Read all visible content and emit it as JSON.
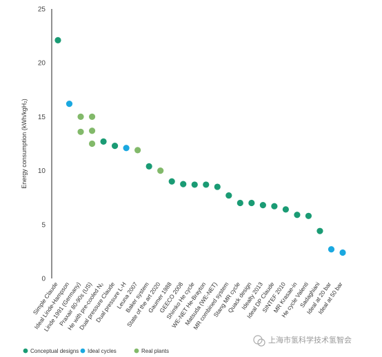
{
  "chart_data": {
    "type": "scatter",
    "xlabel": "",
    "ylabel": "Energy consumption (kWh/kgH₂)",
    "ylim": [
      0,
      25
    ],
    "yticks": [
      0,
      5,
      10,
      15,
      20,
      25
    ],
    "grid": false,
    "legend_position": "bottom-left",
    "colors": {
      "Conceptual designs": "#1a9b74",
      "Ideal cycles": "#1aa8e0",
      "Real plants": "#82b96a"
    },
    "legend": [
      "Conceptual designs",
      "Ideal cycles",
      "Real plants"
    ],
    "categories": [
      "Simple Claude",
      "Ideal Linde-Hampson",
      "Linde 1991 (Germany)",
      "Praxair 80-90s (US)",
      "He with pre-cooled N₂",
      "Dual pressure Claude",
      "Dual pressure L-H",
      "Leuna 2007",
      "Baker system",
      "State of the art 2020",
      "Gaumer 1988",
      "GEECO 2008",
      "Shimko He cycle",
      "WE-NET He-Brayton",
      "Matsuda (WE-NET)",
      "MR combined system",
      "Stang MR cycle",
      "Quack design",
      "Idealty 2013",
      "Ideal DP Claude",
      "SINTEF 2010",
      "MR Krasae-in",
      "He cycle Valenti",
      "Sadaghiani",
      "Ideal at 20 bar",
      "Ideal at 50 bar"
    ],
    "points": [
      {
        "category": "Simple Claude",
        "series": "Conceptual designs",
        "y": 22.1
      },
      {
        "category": "Ideal Linde-Hampson",
        "series": "Ideal cycles",
        "y": 16.2
      },
      {
        "category": "Linde 1991 (Germany)",
        "series": "Real plants",
        "y": 15.0
      },
      {
        "category": "Linde 1991 (Germany)",
        "series": "Real plants",
        "y": 13.6
      },
      {
        "category": "Praxair 80-90s (US)",
        "series": "Real plants",
        "y": 15.0
      },
      {
        "category": "Praxair 80-90s (US)",
        "series": "Real plants",
        "y": 13.7
      },
      {
        "category": "Praxair 80-90s (US)",
        "series": "Real plants",
        "y": 12.5
      },
      {
        "category": "He with pre-cooled N₂",
        "series": "Conceptual designs",
        "y": 12.7
      },
      {
        "category": "Dual pressure Claude",
        "series": "Conceptual designs",
        "y": 12.3
      },
      {
        "category": "Dual pressure L-H",
        "series": "Ideal cycles",
        "y": 12.1
      },
      {
        "category": "Leuna 2007",
        "series": "Real plants",
        "y": 11.9
      },
      {
        "category": "Baker system",
        "series": "Conceptual designs",
        "y": 10.4
      },
      {
        "category": "State of the art 2020",
        "series": "Real plants",
        "y": 10.0
      },
      {
        "category": "Gaumer 1988",
        "series": "Conceptual designs",
        "y": 9.0
      },
      {
        "category": "GEECO 2008",
        "series": "Conceptual designs",
        "y": 8.75
      },
      {
        "category": "Shimko He cycle",
        "series": "Conceptual designs",
        "y": 8.7
      },
      {
        "category": "WE-NET He-Brayton",
        "series": "Conceptual designs",
        "y": 8.7
      },
      {
        "category": "Matsuda (WE-NET)",
        "series": "Conceptual designs",
        "y": 8.5
      },
      {
        "category": "MR combined system",
        "series": "Conceptual designs",
        "y": 7.7
      },
      {
        "category": "Stang MR cycle",
        "series": "Conceptual designs",
        "y": 7.0
      },
      {
        "category": "Quack design",
        "series": "Conceptual designs",
        "y": 7.0
      },
      {
        "category": "Idealty 2013",
        "series": "Conceptual designs",
        "y": 6.8
      },
      {
        "category": "Ideal DP Claude",
        "series": "Conceptual designs",
        "y": 6.7
      },
      {
        "category": "SINTEF 2010",
        "series": "Conceptual designs",
        "y": 6.4
      },
      {
        "category": "MR Krasae-in",
        "series": "Conceptual designs",
        "y": 5.9
      },
      {
        "category": "He cycle Valenti",
        "series": "Conceptual designs",
        "y": 5.8
      },
      {
        "category": "Sadaghiani",
        "series": "Conceptual designs",
        "y": 4.4
      },
      {
        "category": "Ideal at 20 bar",
        "series": "Ideal cycles",
        "y": 2.7
      },
      {
        "category": "Ideal at 50 bar",
        "series": "Ideal cycles",
        "y": 2.4
      }
    ]
  },
  "watermark_text": "上海市氢科学技术氢智会"
}
